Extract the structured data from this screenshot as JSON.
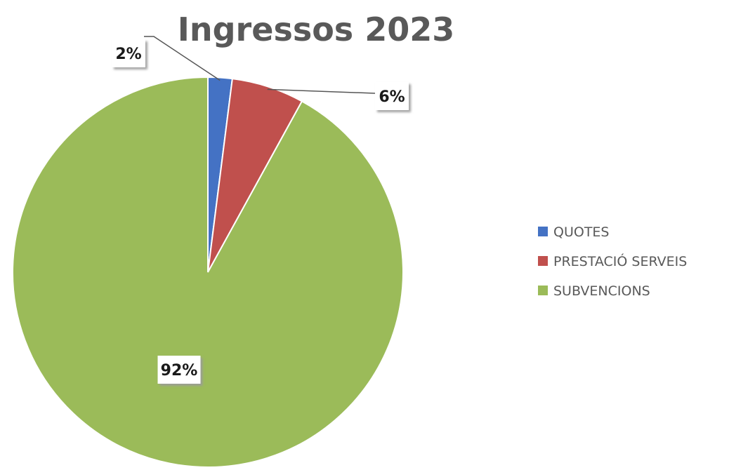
{
  "chart_data": {
    "type": "pie",
    "title": "Ingressos 2023",
    "categories": [
      "QUOTES",
      "PRESTACIÓ SERVEIS",
      "SUBVENCIONS"
    ],
    "values": [
      2,
      6,
      92
    ],
    "data_labels": [
      "2%",
      "6%",
      "92%"
    ],
    "unit": "%",
    "colors": [
      "#4472C4",
      "#C0504D",
      "#9BBB59"
    ],
    "legend_position": "right",
    "start_angle": "top",
    "direction": "clockwise"
  }
}
